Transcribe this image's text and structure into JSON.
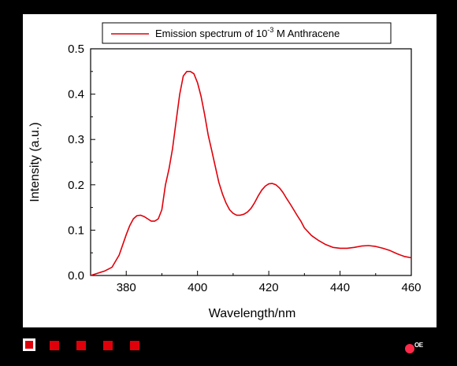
{
  "chart_data": {
    "type": "line",
    "title": "",
    "xlabel": "Wavelength/nm",
    "ylabel": "Intensity (a.u.)",
    "xlim": [
      370,
      460
    ],
    "ylim": [
      0.0,
      0.5
    ],
    "xticks": [
      "380",
      "400",
      "420",
      "440",
      "460"
    ],
    "yticks": [
      "0.0",
      "0.1",
      "0.2",
      "0.3",
      "0.4",
      "0.5"
    ],
    "legend": {
      "placement": "top",
      "prefix": "Emission spectrum of 10",
      "superscript": "-3",
      "suffix": " M Anthracene"
    },
    "grid": false,
    "series": [
      {
        "name": "Emission spectrum of 10-3 M Anthracene",
        "color": "#e0000a",
        "x": [
          370,
          372,
          374,
          376,
          378,
          380,
          381,
          382,
          383,
          384,
          385,
          386,
          387,
          388,
          389,
          390,
          391,
          392,
          393,
          394,
          395,
          396,
          397,
          398,
          399,
          400,
          401,
          402,
          403,
          404,
          405,
          406,
          407,
          408,
          409,
          410,
          411,
          412,
          413,
          414,
          415,
          416,
          417,
          418,
          419,
          420,
          421,
          422,
          423,
          424,
          425,
          426,
          427,
          428,
          429,
          430,
          432,
          434,
          436,
          438,
          440,
          442,
          444,
          446,
          448,
          450,
          452,
          454,
          456,
          458,
          460
        ],
        "values": [
          0.0,
          0.005,
          0.01,
          0.018,
          0.045,
          0.09,
          0.11,
          0.125,
          0.132,
          0.133,
          0.13,
          0.125,
          0.12,
          0.12,
          0.125,
          0.145,
          0.2,
          0.235,
          0.28,
          0.34,
          0.4,
          0.44,
          0.45,
          0.45,
          0.445,
          0.425,
          0.395,
          0.355,
          0.31,
          0.275,
          0.24,
          0.205,
          0.18,
          0.16,
          0.145,
          0.137,
          0.133,
          0.133,
          0.135,
          0.14,
          0.148,
          0.16,
          0.175,
          0.188,
          0.197,
          0.202,
          0.203,
          0.2,
          0.193,
          0.183,
          0.17,
          0.158,
          0.145,
          0.132,
          0.12,
          0.105,
          0.088,
          0.077,
          0.068,
          0.062,
          0.06,
          0.06,
          0.062,
          0.065,
          0.066,
          0.064,
          0.06,
          0.055,
          0.048,
          0.042,
          0.039
        ]
      }
    ]
  },
  "colors": {
    "background": "#000000",
    "panel": "#ffffff",
    "line": "#e0000a",
    "nav_dot": "#e0000a",
    "logo_circle": "#ff2a4a"
  },
  "footer": {
    "nav_dots": 5,
    "active_dot": 0,
    "logo_text": "OE",
    "logo_icon": "logo-circle-icon"
  }
}
